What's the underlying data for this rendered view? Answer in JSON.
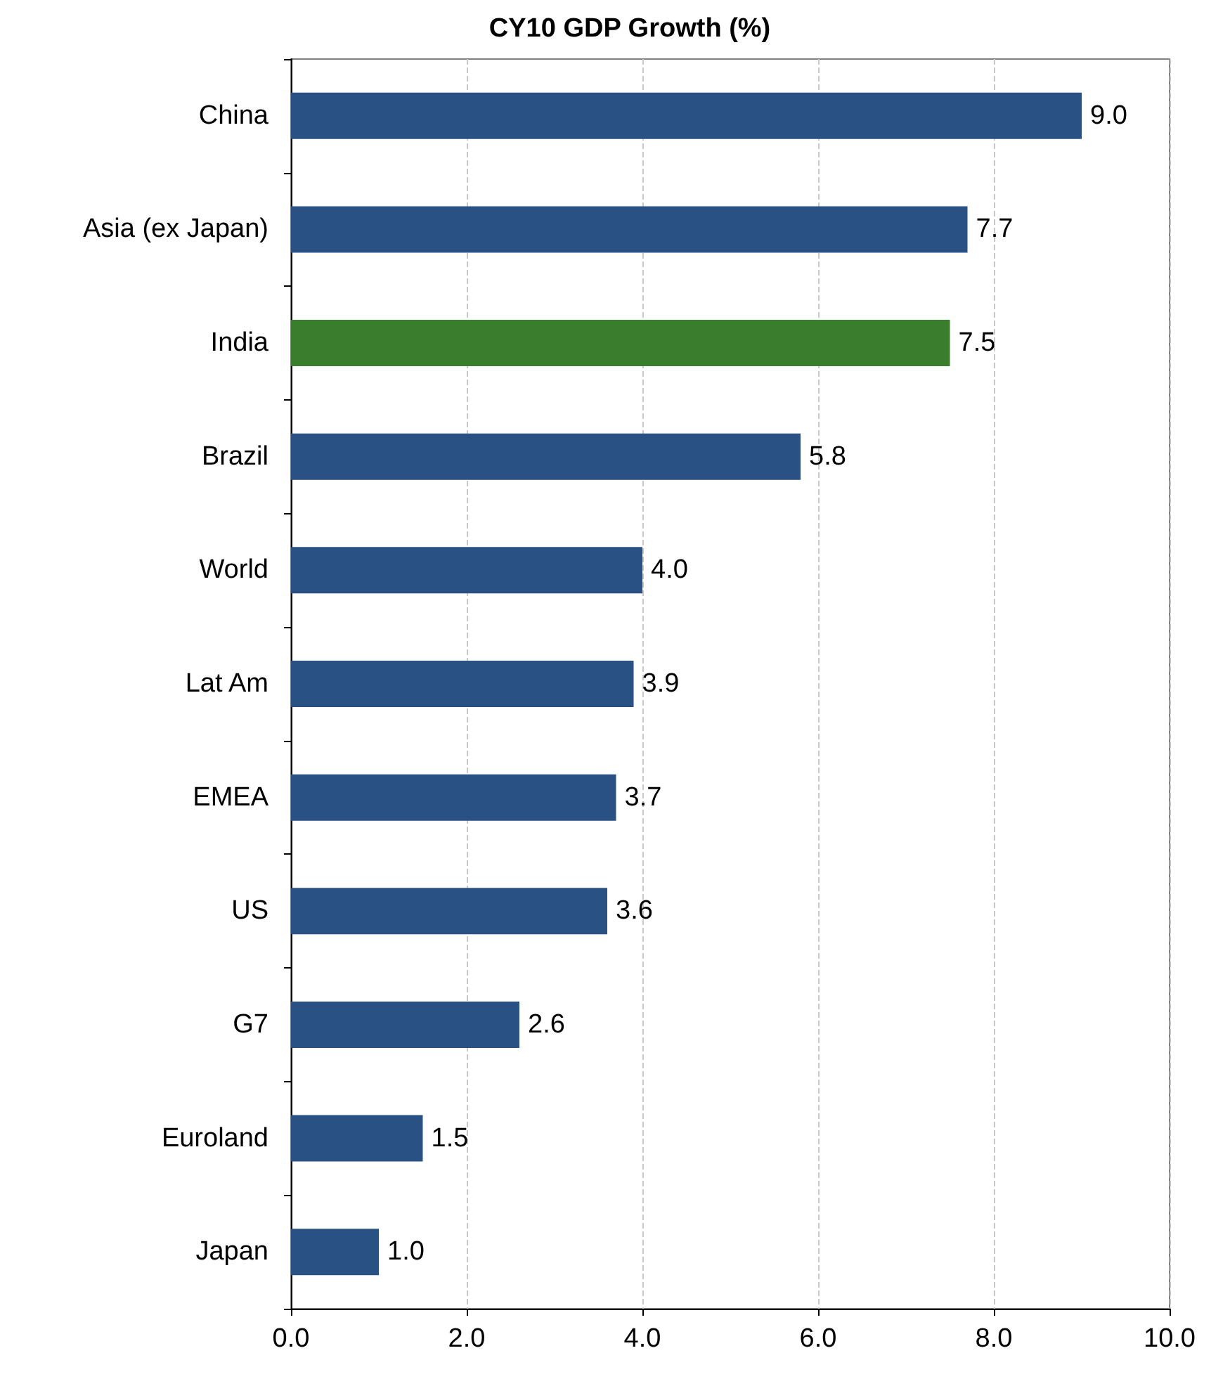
{
  "chart_data": {
    "type": "bar",
    "orientation": "horizontal",
    "title": "CY10 GDP Growth (%)",
    "categories": [
      "China",
      "Asia (ex Japan)",
      "India",
      "Brazil",
      "World",
      "Lat Am",
      "EMEA",
      "US",
      "G7",
      "Euroland",
      "Japan"
    ],
    "values": [
      9.0,
      7.7,
      7.5,
      5.8,
      4.0,
      3.9,
      3.7,
      3.6,
      2.6,
      1.5,
      1.0
    ],
    "colors": [
      "#2a5183",
      "#2a5183",
      "#3a7d2c",
      "#2a5183",
      "#2a5183",
      "#2a5183",
      "#2a5183",
      "#2a5183",
      "#2a5183",
      "#2a5183",
      "#2a5183"
    ],
    "value_labels": [
      "9.0",
      "7.7",
      "7.5",
      "5.8",
      "4.0",
      "3.9",
      "3.7",
      "3.6",
      "2.6",
      "1.5",
      "1.0"
    ],
    "xlim": [
      0,
      10
    ],
    "xticks": [
      {
        "value": 0,
        "label": "0.0"
      },
      {
        "value": 2,
        "label": "2.0"
      },
      {
        "value": 4,
        "label": "4.0"
      },
      {
        "value": 6,
        "label": "6.0"
      },
      {
        "value": 8,
        "label": "8.0"
      },
      {
        "value": 10,
        "label": "10.0"
      }
    ],
    "grid": "x"
  }
}
